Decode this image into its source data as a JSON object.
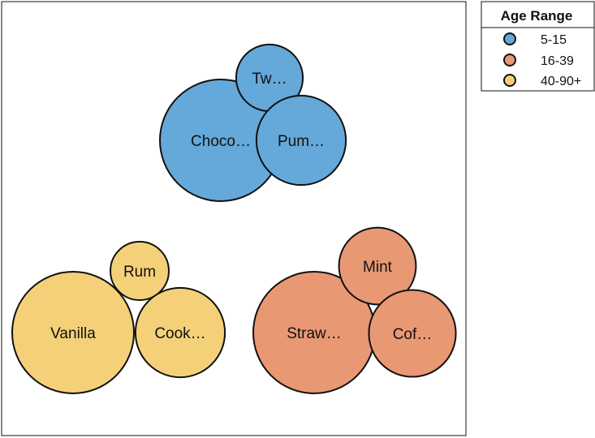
{
  "chart_data": {
    "type": "packed-bubble",
    "legend": {
      "title": "Age Range",
      "placement": "top-right",
      "entries": [
        {
          "label": "5-15",
          "color": "#64a9d9"
        },
        {
          "label": "16-39",
          "color": "#e99874"
        },
        {
          "label": "40-90+",
          "color": "#f4d179"
        }
      ]
    },
    "groups": [
      {
        "name": "5-15",
        "color": "#64a9d9",
        "bubbles": [
          {
            "label": "Choco…",
            "value": 1.0
          },
          {
            "label": "Tw…",
            "value": 0.3
          },
          {
            "label": "Pum…",
            "value": 0.54
          }
        ]
      },
      {
        "name": "40-90+",
        "color": "#f4d179",
        "bubbles": [
          {
            "label": "Vanilla",
            "value": 1.0
          },
          {
            "label": "Rum",
            "value": 0.23
          },
          {
            "label": "Cook…",
            "value": 0.54
          }
        ]
      },
      {
        "name": "16-39",
        "color": "#e99874",
        "bubbles": [
          {
            "label": "Straw…",
            "value": 1.0
          },
          {
            "label": "Mint",
            "value": 0.4
          },
          {
            "label": "Cof…",
            "value": 0.51
          }
        ]
      }
    ]
  }
}
